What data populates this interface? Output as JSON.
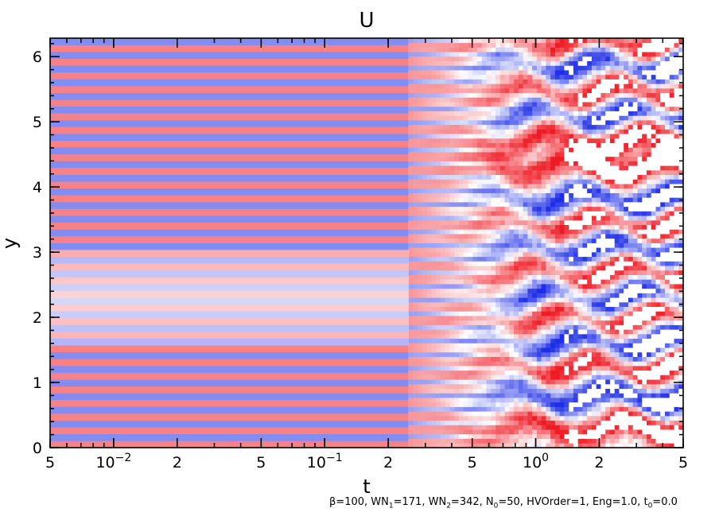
{
  "chart_data": {
    "type": "heatmap",
    "title": "U",
    "xlabel": "t",
    "ylabel": "y",
    "x_scale": "log",
    "xlim": [
      0.005,
      5
    ],
    "ylim": [
      0,
      6.283
    ],
    "x_ticks": [
      {
        "value": 0.005,
        "label": "5"
      },
      {
        "value": 0.01,
        "label": "10",
        "exp": "−2"
      },
      {
        "value": 0.02,
        "label": "2"
      },
      {
        "value": 0.05,
        "label": "5"
      },
      {
        "value": 0.1,
        "label": "10",
        "exp": "−1"
      },
      {
        "value": 0.2,
        "label": "2"
      },
      {
        "value": 0.5,
        "label": "5"
      },
      {
        "value": 1,
        "label": "10",
        "exp": "0"
      },
      {
        "value": 2,
        "label": "2"
      },
      {
        "value": 5,
        "label": "5"
      }
    ],
    "y_ticks": [
      0,
      1,
      2,
      3,
      4,
      5,
      6
    ],
    "colormap": {
      "negative": "#1e2ee6",
      "zero": "#ffffff",
      "positive": "#ee1b24"
    },
    "description_of_pattern": {
      "early_stripe_count": 60,
      "transition_t": 0.25,
      "late_bands_y": [
        0.3,
        0.8,
        1.25,
        1.6,
        2.0,
        2.3,
        2.7,
        3.05,
        3.45,
        3.8,
        4.3,
        4.75,
        5.1,
        5.45,
        5.9,
        6.2
      ],
      "late_band_signs": [
        1,
        -1,
        1,
        -1,
        1,
        -1,
        1,
        -1,
        1,
        -1,
        1,
        1,
        -1,
        1,
        -1,
        1
      ]
    }
  },
  "footnote": {
    "beta": "β=100,",
    "wn1_pre": "WN",
    "wn1_sub": "1",
    "wn1_val": "=171,",
    "wn2_pre": "WN",
    "wn2_sub": "2",
    "wn2_val": "=342,",
    "n0_pre": "N",
    "n0_sub": "0",
    "n0_val": "=50,",
    "rest": "HVOrder=1, Eng=1.0,",
    "t0_pre": "t",
    "t0_sub": "0",
    "t0_val": "=0.0"
  }
}
